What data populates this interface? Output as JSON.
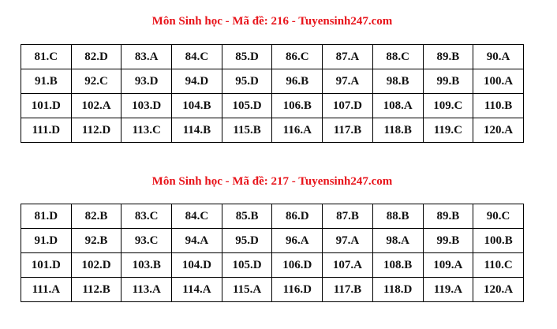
{
  "sections": [
    {
      "title": "Môn Sinh học - Mã đề: 216 - Tuyensinh247.com",
      "rows": [
        [
          "81.C",
          "82.D",
          "83.A",
          "84.C",
          "85.D",
          "86.C",
          "87.A",
          "88.C",
          "89.B",
          "90.A"
        ],
        [
          "91.B",
          "92.C",
          "93.D",
          "94.D",
          "95.D",
          "96.B",
          "97.A",
          "98.B",
          "99.B",
          "100.A"
        ],
        [
          "101.D",
          "102.A",
          "103.D",
          "104.B",
          "105.D",
          "106.B",
          "107.D",
          "108.A",
          "109.C",
          "110.B"
        ],
        [
          "111.D",
          "112.D",
          "113.C",
          "114.B",
          "115.B",
          "116.A",
          "117.B",
          "118.B",
          "119.C",
          "120.A"
        ]
      ]
    },
    {
      "title": "Môn Sinh học - Mã đề: 217 - Tuyensinh247.com",
      "rows": [
        [
          "81.D",
          "82.B",
          "83.C",
          "84.C",
          "85.B",
          "86.D",
          "87.B",
          "88.B",
          "89.B",
          "90.C"
        ],
        [
          "91.D",
          "92.B",
          "93.C",
          "94.A",
          "95.D",
          "96.A",
          "97.A",
          "98.A",
          "99.B",
          "100.B"
        ],
        [
          "101.D",
          "102.D",
          "103.B",
          "104.D",
          "105.D",
          "106.D",
          "107.A",
          "108.B",
          "109.A",
          "110.C"
        ],
        [
          "111.A",
          "112.B",
          "113.A",
          "114.A",
          "115.A",
          "116.D",
          "117.B",
          "118.D",
          "119.A",
          "120.A"
        ]
      ]
    }
  ],
  "colors": {
    "title": "#e8141b",
    "text": "#111111",
    "border": "#000000"
  }
}
